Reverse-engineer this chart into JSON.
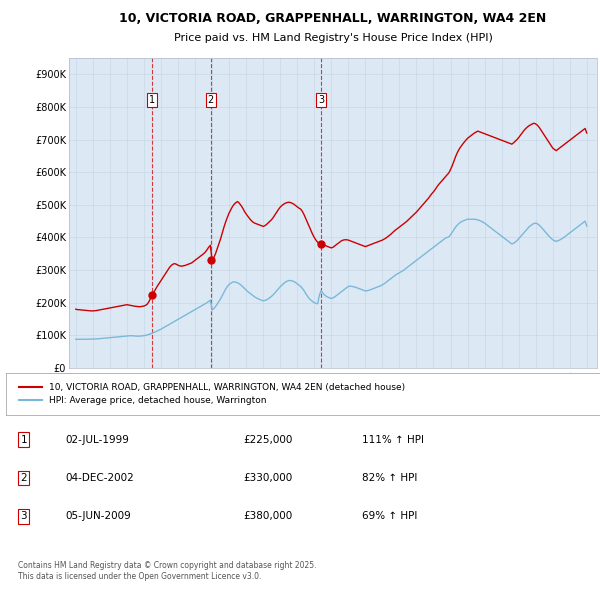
{
  "title_line1": "10, VICTORIA ROAD, GRAPPENHALL, WARRINGTON, WA4 2EN",
  "title_line2": "Price paid vs. HM Land Registry's House Price Index (HPI)",
  "background_color": "#dce9f5",
  "red_line_label": "10, VICTORIA ROAD, GRAPPENHALL, WARRINGTON, WA4 2EN (detached house)",
  "blue_line_label": "HPI: Average price, detached house, Warrington",
  "purchases": [
    {
      "num": 1,
      "date": "02-JUL-1999",
      "price": 225000,
      "pct": "111%",
      "dir": "↑",
      "x_year": 1999.5
    },
    {
      "num": 2,
      "date": "04-DEC-2002",
      "price": 330000,
      "pct": "82%",
      "dir": "↑",
      "x_year": 2002.92
    },
    {
      "num": 3,
      "date": "05-JUN-2009",
      "price": 380000,
      "pct": "69%",
      "dir": "↑",
      "x_year": 2009.42
    }
  ],
  "footer_text": "Contains HM Land Registry data © Crown copyright and database right 2025.\nThis data is licensed under the Open Government Licence v3.0.",
  "ylim": [
    0,
    950000
  ],
  "yticks": [
    0,
    100000,
    200000,
    300000,
    400000,
    500000,
    600000,
    700000,
    800000,
    900000
  ],
  "ytick_labels": [
    "£0",
    "£100K",
    "£200K",
    "£300K",
    "£400K",
    "£500K",
    "£600K",
    "£700K",
    "£800K",
    "£900K"
  ],
  "xlim_start": 1994.6,
  "xlim_end": 2025.6,
  "xticks": [
    1995,
    1996,
    1997,
    1998,
    1999,
    2000,
    2001,
    2002,
    2003,
    2004,
    2005,
    2006,
    2007,
    2008,
    2009,
    2010,
    2011,
    2012,
    2013,
    2014,
    2015,
    2016,
    2017,
    2018,
    2019,
    2020,
    2021,
    2022,
    2023,
    2024,
    2025
  ],
  "red_color": "#cc0000",
  "blue_color": "#7ab8d9",
  "red_data_x": [
    1995.0,
    1995.1,
    1995.2,
    1995.3,
    1995.4,
    1995.5,
    1995.6,
    1995.7,
    1995.8,
    1995.9,
    1996.0,
    1996.1,
    1996.2,
    1996.3,
    1996.4,
    1996.5,
    1996.6,
    1996.7,
    1996.8,
    1996.9,
    1997.0,
    1997.1,
    1997.2,
    1997.3,
    1997.4,
    1997.5,
    1997.6,
    1997.7,
    1997.8,
    1997.9,
    1998.0,
    1998.1,
    1998.2,
    1998.3,
    1998.4,
    1998.5,
    1998.6,
    1998.7,
    1998.8,
    1998.9,
    1999.0,
    1999.1,
    1999.2,
    1999.3,
    1999.4,
    1999.5,
    1999.6,
    1999.7,
    1999.8,
    1999.9,
    2000.0,
    2000.1,
    2000.2,
    2000.3,
    2000.4,
    2000.5,
    2000.6,
    2000.7,
    2000.8,
    2000.9,
    2001.0,
    2001.1,
    2001.2,
    2001.3,
    2001.4,
    2001.5,
    2001.6,
    2001.7,
    2001.8,
    2001.9,
    2002.0,
    2002.1,
    2002.2,
    2002.3,
    2002.4,
    2002.5,
    2002.6,
    2002.7,
    2002.8,
    2002.9,
    2003.0,
    2003.1,
    2003.2,
    2003.3,
    2003.4,
    2003.5,
    2003.6,
    2003.7,
    2003.8,
    2003.9,
    2004.0,
    2004.1,
    2004.2,
    2004.3,
    2004.4,
    2004.5,
    2004.6,
    2004.7,
    2004.8,
    2004.9,
    2005.0,
    2005.1,
    2005.2,
    2005.3,
    2005.4,
    2005.5,
    2005.6,
    2005.7,
    2005.8,
    2005.9,
    2006.0,
    2006.1,
    2006.2,
    2006.3,
    2006.4,
    2006.5,
    2006.6,
    2006.7,
    2006.8,
    2006.9,
    2007.0,
    2007.1,
    2007.2,
    2007.3,
    2007.4,
    2007.5,
    2007.6,
    2007.7,
    2007.8,
    2007.9,
    2008.0,
    2008.1,
    2008.2,
    2008.3,
    2008.4,
    2008.5,
    2008.6,
    2008.7,
    2008.8,
    2008.9,
    2009.0,
    2009.1,
    2009.2,
    2009.3,
    2009.4,
    2009.5,
    2009.6,
    2009.7,
    2009.8,
    2009.9,
    2010.0,
    2010.1,
    2010.2,
    2010.3,
    2010.4,
    2010.5,
    2010.6,
    2010.7,
    2010.8,
    2010.9,
    2011.0,
    2011.1,
    2011.2,
    2011.3,
    2011.4,
    2011.5,
    2011.6,
    2011.7,
    2011.8,
    2011.9,
    2012.0,
    2012.1,
    2012.2,
    2012.3,
    2012.4,
    2012.5,
    2012.6,
    2012.7,
    2012.8,
    2012.9,
    2013.0,
    2013.1,
    2013.2,
    2013.3,
    2013.4,
    2013.5,
    2013.6,
    2013.7,
    2013.8,
    2013.9,
    2014.0,
    2014.1,
    2014.2,
    2014.3,
    2014.4,
    2014.5,
    2014.6,
    2014.7,
    2014.8,
    2014.9,
    2015.0,
    2015.1,
    2015.2,
    2015.3,
    2015.4,
    2015.5,
    2015.6,
    2015.7,
    2015.8,
    2015.9,
    2016.0,
    2016.1,
    2016.2,
    2016.3,
    2016.4,
    2016.5,
    2016.6,
    2016.7,
    2016.8,
    2016.9,
    2017.0,
    2017.1,
    2017.2,
    2017.3,
    2017.4,
    2017.5,
    2017.6,
    2017.7,
    2017.8,
    2017.9,
    2018.0,
    2018.1,
    2018.2,
    2018.3,
    2018.4,
    2018.5,
    2018.6,
    2018.7,
    2018.8,
    2018.9,
    2019.0,
    2019.1,
    2019.2,
    2019.3,
    2019.4,
    2019.5,
    2019.6,
    2019.7,
    2019.8,
    2019.9,
    2020.0,
    2020.1,
    2020.2,
    2020.3,
    2020.4,
    2020.5,
    2020.6,
    2020.7,
    2020.8,
    2020.9,
    2021.0,
    2021.1,
    2021.2,
    2021.3,
    2021.4,
    2021.5,
    2021.6,
    2021.7,
    2021.8,
    2021.9,
    2022.0,
    2022.1,
    2022.2,
    2022.3,
    2022.4,
    2022.5,
    2022.6,
    2022.7,
    2022.8,
    2022.9,
    2023.0,
    2023.1,
    2023.2,
    2023.3,
    2023.4,
    2023.5,
    2023.6,
    2023.7,
    2023.8,
    2023.9,
    2024.0,
    2024.1,
    2024.2,
    2024.3,
    2024.4,
    2024.5,
    2024.6,
    2024.7,
    2024.8,
    2024.9,
    2025.0
  ],
  "red_data_y": [
    180000,
    179000,
    178500,
    178000,
    177500,
    177000,
    176500,
    176000,
    175500,
    175000,
    175000,
    175500,
    176000,
    177000,
    178000,
    179000,
    180000,
    181000,
    182000,
    183000,
    184000,
    185000,
    186000,
    187000,
    188000,
    189000,
    190000,
    191000,
    192000,
    193000,
    194000,
    193000,
    192000,
    191000,
    190000,
    189000,
    188500,
    188000,
    188000,
    189000,
    190000,
    192000,
    196000,
    204000,
    215000,
    225000,
    234000,
    243000,
    252000,
    260000,
    268000,
    276000,
    284000,
    292000,
    300000,
    308000,
    314000,
    318000,
    320000,
    318000,
    315000,
    313000,
    312000,
    313000,
    314000,
    316000,
    318000,
    320000,
    322000,
    326000,
    330000,
    334000,
    338000,
    342000,
    346000,
    350000,
    355000,
    362000,
    370000,
    376000,
    330000,
    338000,
    350000,
    365000,
    380000,
    396000,
    414000,
    432000,
    448000,
    462000,
    475000,
    485000,
    495000,
    502000,
    507000,
    510000,
    505000,
    498000,
    490000,
    480000,
    472000,
    465000,
    458000,
    452000,
    447000,
    444000,
    442000,
    440000,
    438000,
    436000,
    434000,
    436000,
    440000,
    445000,
    450000,
    455000,
    462000,
    470000,
    478000,
    486000,
    493000,
    498000,
    502000,
    505000,
    507000,
    508000,
    507000,
    505000,
    502000,
    498000,
    494000,
    490000,
    487000,
    480000,
    470000,
    458000,
    446000,
    434000,
    422000,
    410000,
    400000,
    392000,
    385000,
    382000,
    380000,
    378000,
    376000,
    374000,
    372000,
    370000,
    368000,
    370000,
    374000,
    378000,
    382000,
    386000,
    390000,
    392000,
    393000,
    393000,
    392000,
    390000,
    388000,
    386000,
    384000,
    382000,
    380000,
    378000,
    376000,
    374000,
    372000,
    374000,
    376000,
    378000,
    380000,
    382000,
    384000,
    386000,
    388000,
    390000,
    392000,
    395000,
    398000,
    402000,
    406000,
    410000,
    415000,
    420000,
    424000,
    428000,
    432000,
    436000,
    440000,
    444000,
    448000,
    453000,
    458000,
    463000,
    468000,
    473000,
    478000,
    484000,
    490000,
    496000,
    502000,
    508000,
    514000,
    520000,
    527000,
    534000,
    540000,
    547000,
    555000,
    562000,
    568000,
    574000,
    580000,
    586000,
    592000,
    598000,
    608000,
    620000,
    634000,
    648000,
    660000,
    670000,
    678000,
    685000,
    692000,
    698000,
    704000,
    708000,
    712000,
    716000,
    720000,
    723000,
    726000,
    724000,
    722000,
    720000,
    718000,
    716000,
    714000,
    712000,
    710000,
    708000,
    706000,
    704000,
    702000,
    700000,
    698000,
    696000,
    694000,
    692000,
    690000,
    688000,
    686000,
    690000,
    695000,
    700000,
    706000,
    713000,
    720000,
    727000,
    733000,
    738000,
    742000,
    745000,
    748000,
    750000,
    748000,
    744000,
    738000,
    730000,
    722000,
    714000,
    706000,
    698000,
    690000,
    682000,
    674000,
    670000,
    666000,
    670000,
    674000,
    678000,
    682000,
    686000,
    690000,
    694000,
    698000,
    702000,
    706000,
    710000,
    714000,
    718000,
    722000,
    726000,
    730000,
    734000,
    720000
  ],
  "blue_data_x": [
    1995.0,
    1995.1,
    1995.2,
    1995.3,
    1995.4,
    1995.5,
    1995.6,
    1995.7,
    1995.8,
    1995.9,
    1996.0,
    1996.1,
    1996.2,
    1996.3,
    1996.4,
    1996.5,
    1996.6,
    1996.7,
    1996.8,
    1996.9,
    1997.0,
    1997.1,
    1997.2,
    1997.3,
    1997.4,
    1997.5,
    1997.6,
    1997.7,
    1997.8,
    1997.9,
    1998.0,
    1998.1,
    1998.2,
    1998.3,
    1998.4,
    1998.5,
    1998.6,
    1998.7,
    1998.8,
    1998.9,
    1999.0,
    1999.1,
    1999.2,
    1999.3,
    1999.4,
    1999.5,
    1999.6,
    1999.7,
    1999.8,
    1999.9,
    2000.0,
    2000.1,
    2000.2,
    2000.3,
    2000.4,
    2000.5,
    2000.6,
    2000.7,
    2000.8,
    2000.9,
    2001.0,
    2001.1,
    2001.2,
    2001.3,
    2001.4,
    2001.5,
    2001.6,
    2001.7,
    2001.8,
    2001.9,
    2002.0,
    2002.1,
    2002.2,
    2002.3,
    2002.4,
    2002.5,
    2002.6,
    2002.7,
    2002.8,
    2002.9,
    2003.0,
    2003.1,
    2003.2,
    2003.3,
    2003.4,
    2003.5,
    2003.6,
    2003.7,
    2003.8,
    2003.9,
    2004.0,
    2004.1,
    2004.2,
    2004.3,
    2004.4,
    2004.5,
    2004.6,
    2004.7,
    2004.8,
    2004.9,
    2005.0,
    2005.1,
    2005.2,
    2005.3,
    2005.4,
    2005.5,
    2005.6,
    2005.7,
    2005.8,
    2005.9,
    2006.0,
    2006.1,
    2006.2,
    2006.3,
    2006.4,
    2006.5,
    2006.6,
    2006.7,
    2006.8,
    2006.9,
    2007.0,
    2007.1,
    2007.2,
    2007.3,
    2007.4,
    2007.5,
    2007.6,
    2007.7,
    2007.8,
    2007.9,
    2008.0,
    2008.1,
    2008.2,
    2008.3,
    2008.4,
    2008.5,
    2008.6,
    2008.7,
    2008.8,
    2008.9,
    2009.0,
    2009.1,
    2009.2,
    2009.3,
    2009.4,
    2009.5,
    2009.6,
    2009.7,
    2009.8,
    2009.9,
    2010.0,
    2010.1,
    2010.2,
    2010.3,
    2010.4,
    2010.5,
    2010.6,
    2010.7,
    2010.8,
    2010.9,
    2011.0,
    2011.1,
    2011.2,
    2011.3,
    2011.4,
    2011.5,
    2011.6,
    2011.7,
    2011.8,
    2011.9,
    2012.0,
    2012.1,
    2012.2,
    2012.3,
    2012.4,
    2012.5,
    2012.6,
    2012.7,
    2012.8,
    2012.9,
    2013.0,
    2013.1,
    2013.2,
    2013.3,
    2013.4,
    2013.5,
    2013.6,
    2013.7,
    2013.8,
    2013.9,
    2014.0,
    2014.1,
    2014.2,
    2014.3,
    2014.4,
    2014.5,
    2014.6,
    2014.7,
    2014.8,
    2014.9,
    2015.0,
    2015.1,
    2015.2,
    2015.3,
    2015.4,
    2015.5,
    2015.6,
    2015.7,
    2015.8,
    2015.9,
    2016.0,
    2016.1,
    2016.2,
    2016.3,
    2016.4,
    2016.5,
    2016.6,
    2016.7,
    2016.8,
    2016.9,
    2017.0,
    2017.1,
    2017.2,
    2017.3,
    2017.4,
    2017.5,
    2017.6,
    2017.7,
    2017.8,
    2017.9,
    2018.0,
    2018.1,
    2018.2,
    2018.3,
    2018.4,
    2018.5,
    2018.6,
    2018.7,
    2018.8,
    2018.9,
    2019.0,
    2019.1,
    2019.2,
    2019.3,
    2019.4,
    2019.5,
    2019.6,
    2019.7,
    2019.8,
    2019.9,
    2020.0,
    2020.1,
    2020.2,
    2020.3,
    2020.4,
    2020.5,
    2020.6,
    2020.7,
    2020.8,
    2020.9,
    2021.0,
    2021.1,
    2021.2,
    2021.3,
    2021.4,
    2021.5,
    2021.6,
    2021.7,
    2021.8,
    2021.9,
    2022.0,
    2022.1,
    2022.2,
    2022.3,
    2022.4,
    2022.5,
    2022.6,
    2022.7,
    2022.8,
    2022.9,
    2023.0,
    2023.1,
    2023.2,
    2023.3,
    2023.4,
    2023.5,
    2023.6,
    2023.7,
    2023.8,
    2023.9,
    2024.0,
    2024.1,
    2024.2,
    2024.3,
    2024.4,
    2024.5,
    2024.6,
    2024.7,
    2024.8,
    2024.9,
    2025.0
  ],
  "blue_data_y": [
    88000,
    88000,
    88000,
    88000,
    88000,
    88000,
    88000,
    88200,
    88400,
    88600,
    88800,
    89000,
    89200,
    89500,
    90000,
    90500,
    91000,
    91500,
    92000,
    92500,
    93000,
    93500,
    94000,
    94500,
    95000,
    95500,
    96000,
    96500,
    97000,
    97500,
    98000,
    98500,
    99000,
    99000,
    98500,
    98000,
    97500,
    97500,
    98000,
    98500,
    99000,
    100000,
    101500,
    103000,
    105000,
    107000,
    109000,
    111500,
    114000,
    116500,
    119000,
    122000,
    125000,
    128000,
    131000,
    134000,
    137000,
    140000,
    143000,
    146000,
    149000,
    152000,
    155000,
    158000,
    161000,
    164000,
    167000,
    170000,
    173000,
    176000,
    179000,
    182000,
    185000,
    188000,
    191000,
    194000,
    197000,
    200000,
    204000,
    208000,
    178000,
    182000,
    188000,
    196000,
    204000,
    212000,
    222000,
    232000,
    242000,
    250000,
    256000,
    260000,
    263000,
    264000,
    263000,
    261000,
    258000,
    254000,
    249000,
    244000,
    239000,
    234000,
    230000,
    226000,
    222000,
    218000,
    215000,
    212000,
    210000,
    208000,
    206000,
    207000,
    209000,
    212000,
    216000,
    220000,
    225000,
    231000,
    237000,
    243000,
    249000,
    254000,
    259000,
    263000,
    266000,
    268000,
    268000,
    267000,
    265000,
    262000,
    258000,
    254000,
    250000,
    244000,
    237000,
    228000,
    220000,
    213000,
    208000,
    204000,
    200000,
    198000,
    197000,
    223000,
    237000,
    230000,
    224000,
    220000,
    217000,
    215000,
    213000,
    215000,
    218000,
    222000,
    226000,
    230000,
    234000,
    238000,
    242000,
    246000,
    250000,
    251000,
    250000,
    249000,
    248000,
    246000,
    244000,
    242000,
    240000,
    238000,
    236000,
    237000,
    238000,
    240000,
    242000,
    244000,
    246000,
    248000,
    250000,
    252000,
    255000,
    258000,
    262000,
    266000,
    270000,
    274000,
    278000,
    282000,
    286000,
    289000,
    292000,
    295000,
    298000,
    302000,
    306000,
    310000,
    314000,
    318000,
    322000,
    326000,
    330000,
    334000,
    338000,
    342000,
    346000,
    350000,
    354000,
    358000,
    362000,
    366000,
    370000,
    374000,
    378000,
    382000,
    386000,
    390000,
    394000,
    398000,
    400000,
    402000,
    408000,
    416000,
    424000,
    432000,
    438000,
    443000,
    447000,
    450000,
    452000,
    454000,
    456000,
    456000,
    456000,
    456000,
    456000,
    455000,
    454000,
    452000,
    450000,
    447000,
    444000,
    440000,
    436000,
    432000,
    428000,
    424000,
    420000,
    416000,
    412000,
    408000,
    404000,
    400000,
    396000,
    392000,
    388000,
    384000,
    380000,
    382000,
    386000,
    390000,
    396000,
    402000,
    408000,
    414000,
    420000,
    426000,
    432000,
    436000,
    440000,
    443000,
    444000,
    442000,
    438000,
    433000,
    427000,
    421000,
    415000,
    409000,
    403000,
    398000,
    393000,
    390000,
    388000,
    390000,
    392000,
    395000,
    398000,
    402000,
    406000,
    410000,
    414000,
    418000,
    422000,
    426000,
    430000,
    434000,
    438000,
    442000,
    446000,
    450000,
    435000
  ]
}
